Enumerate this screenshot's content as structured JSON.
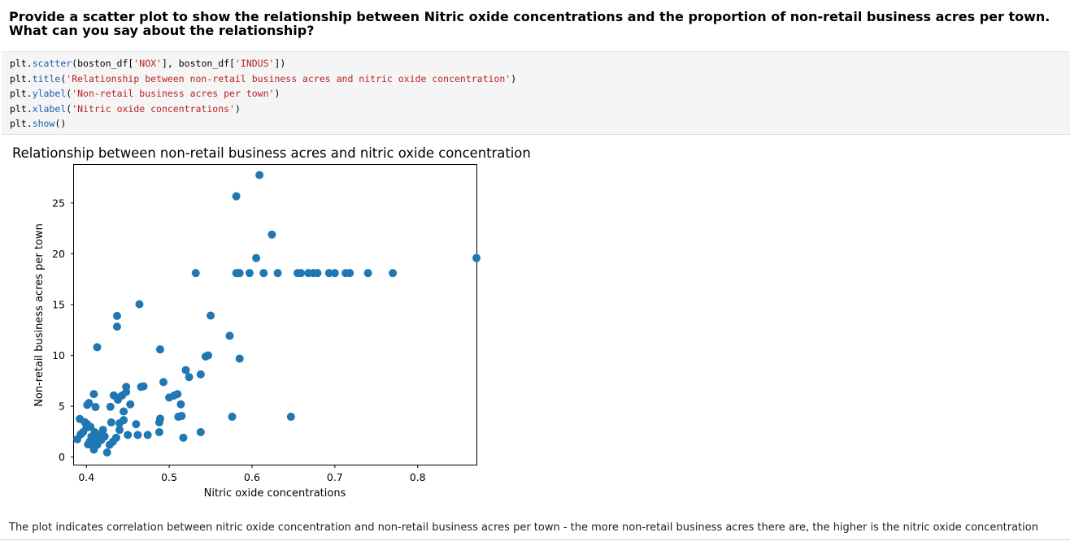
{
  "question": {
    "text": "Provide a scatter plot to show the relationship between Nitric oxide concentrations and the proportion of non-retail business acres per town. What can you say about the relationship?"
  },
  "code_cell": {
    "lines": [
      [
        {
          "t": "plt.",
          "k": "plain"
        },
        {
          "t": "scatter",
          "k": "attr"
        },
        {
          "t": "(boston_df[",
          "k": "plain"
        },
        {
          "t": "'NOX'",
          "k": "str"
        },
        {
          "t": "], boston_df[",
          "k": "plain"
        },
        {
          "t": "'INDUS'",
          "k": "str"
        },
        {
          "t": "])",
          "k": "plain"
        }
      ],
      [
        {
          "t": "plt.",
          "k": "plain"
        },
        {
          "t": "title",
          "k": "attr"
        },
        {
          "t": "(",
          "k": "plain"
        },
        {
          "t": "'Relationship between non-retail business acres and nitric oxide concentration'",
          "k": "str"
        },
        {
          "t": ")",
          "k": "plain"
        }
      ],
      [
        {
          "t": "plt.",
          "k": "plain"
        },
        {
          "t": "ylabel",
          "k": "attr"
        },
        {
          "t": "(",
          "k": "plain"
        },
        {
          "t": "'Non-retail business acres per town'",
          "k": "str"
        },
        {
          "t": ")",
          "k": "plain"
        }
      ],
      [
        {
          "t": "plt.",
          "k": "plain"
        },
        {
          "t": "xlabel",
          "k": "attr"
        },
        {
          "t": "(",
          "k": "plain"
        },
        {
          "t": "'Nitric oxide concentrations'",
          "k": "str"
        },
        {
          "t": ")",
          "k": "plain"
        }
      ],
      [
        {
          "t": "plt.",
          "k": "plain"
        },
        {
          "t": "show",
          "k": "attr"
        },
        {
          "t": "()",
          "k": "plain"
        }
      ]
    ]
  },
  "answer": {
    "text": "The plot indicates correlation between nitric oxide concentration and non-retail business acres per town - the more non-retail business acres there are, the higher is the nitric oxide concentration"
  },
  "chart_data": {
    "type": "scatter",
    "title": "Relationship between non-retail business acres and nitric oxide concentration",
    "xlabel": "Nitric oxide concentrations",
    "ylabel": "Non-retail business acres per town",
    "xlim": [
      0.385,
      0.871
    ],
    "ylim": [
      -0.74,
      28.74
    ],
    "xticks": [
      0.4,
      0.5,
      0.6,
      0.7,
      0.8
    ],
    "xtick_labels": [
      "0.4",
      "0.5",
      "0.6",
      "0.7",
      "0.8"
    ],
    "yticks": [
      0,
      5,
      10,
      15,
      20,
      25
    ],
    "ytick_labels": [
      "0",
      "5",
      "10",
      "15",
      "20",
      "25"
    ],
    "grid": false,
    "marker_color": "#1f77b4",
    "series": [
      {
        "x": [
          0.609,
          0.581,
          0.624,
          0.871,
          0.605,
          0.532,
          0.581,
          0.583,
          0.585,
          0.597,
          0.614,
          0.631,
          0.655,
          0.659,
          0.668,
          0.674,
          0.679,
          0.693,
          0.7,
          0.713,
          0.718,
          0.74,
          0.77,
          0.464,
          0.437,
          0.437,
          0.55,
          0.573,
          0.413,
          0.489,
          0.544,
          0.547,
          0.585,
          0.52,
          0.538,
          0.524,
          0.493,
          0.466,
          0.469,
          0.448,
          0.448,
          0.443,
          0.433,
          0.438,
          0.437,
          0.409,
          0.403,
          0.401,
          0.411,
          0.5,
          0.506,
          0.51,
          0.514,
          0.453,
          0.445,
          0.429,
          0.515,
          0.576,
          0.647,
          0.511,
          0.392,
          0.398,
          0.401,
          0.4,
          0.405,
          0.41,
          0.42,
          0.43,
          0.44,
          0.445,
          0.46,
          0.489,
          0.488,
          0.488,
          0.389,
          0.393,
          0.396,
          0.402,
          0.404,
          0.406,
          0.408,
          0.409,
          0.411,
          0.413,
          0.416,
          0.418,
          0.422,
          0.428,
          0.432,
          0.436,
          0.44,
          0.45,
          0.462,
          0.474,
          0.517,
          0.538,
          0.425
        ],
        "y": [
          27.74,
          25.65,
          21.89,
          19.58,
          19.58,
          18.1,
          18.1,
          18.1,
          18.1,
          18.1,
          18.1,
          18.1,
          18.1,
          18.1,
          18.1,
          18.1,
          18.1,
          18.1,
          18.1,
          18.1,
          18.1,
          18.1,
          18.1,
          15.04,
          13.89,
          12.83,
          13.92,
          11.93,
          10.81,
          10.59,
          9.9,
          10.01,
          9.69,
          8.56,
          8.14,
          7.87,
          7.38,
          6.91,
          6.96,
          6.91,
          6.41,
          6.06,
          6.07,
          5.64,
          5.86,
          6.2,
          5.32,
          5.13,
          4.93,
          5.86,
          6.06,
          6.2,
          5.19,
          5.19,
          4.49,
          4.95,
          4.05,
          3.97,
          3.97,
          3.97,
          3.75,
          3.44,
          3.24,
          2.89,
          2.97,
          2.46,
          2.68,
          3.41,
          3.33,
          3.64,
          3.24,
          3.78,
          3.41,
          2.46,
          1.76,
          2.24,
          2.46,
          1.25,
          1.52,
          2.01,
          1.38,
          0.74,
          1.89,
          1.22,
          2.18,
          1.69,
          2.03,
          1.21,
          1.52,
          1.91,
          2.68,
          2.18,
          2.18,
          2.18,
          1.91,
          2.46,
          0.46
        ]
      }
    ]
  }
}
